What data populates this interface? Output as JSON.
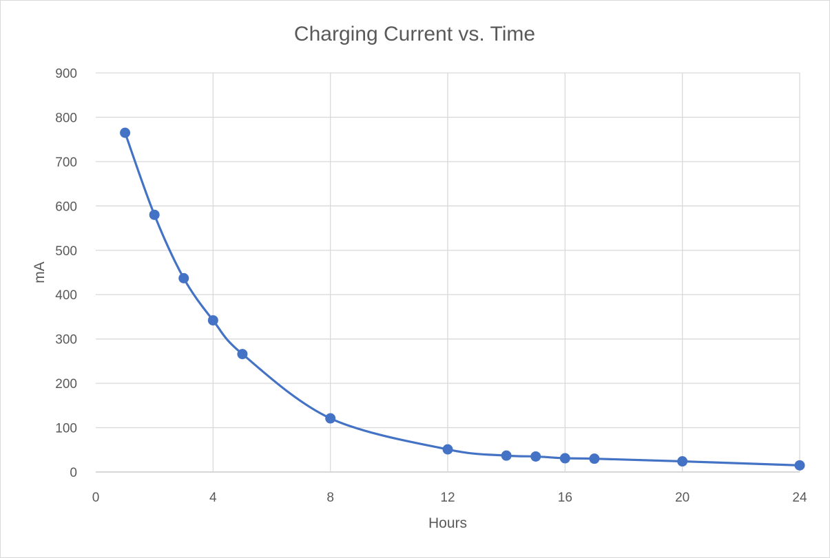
{
  "chart_data": {
    "type": "scatter",
    "title": "Charging Current vs. Time",
    "xlabel": "Hours",
    "ylabel": "mA",
    "xlim": [
      0,
      24
    ],
    "ylim": [
      0,
      900
    ],
    "x_ticks": [
      0,
      4,
      8,
      12,
      16,
      20,
      24
    ],
    "y_ticks": [
      0,
      100,
      200,
      300,
      400,
      500,
      600,
      700,
      800,
      900
    ],
    "grid": true,
    "smoothed_line": true,
    "series_color": "#4472c4",
    "series": [
      {
        "x": [
          1,
          2,
          3,
          4,
          5,
          8,
          12,
          14,
          15,
          16,
          17,
          20,
          24
        ],
        "y": [
          765,
          580,
          437,
          342,
          266,
          121,
          51,
          37,
          35,
          31,
          30,
          24,
          15
        ]
      }
    ]
  }
}
